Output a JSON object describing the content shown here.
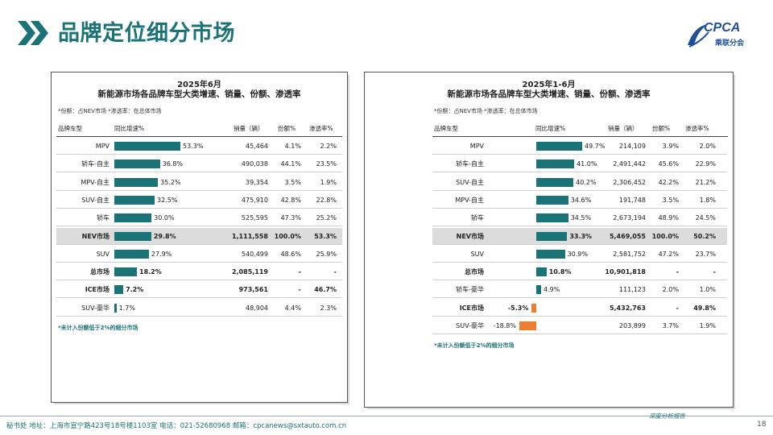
{
  "page": {
    "title": "品牌定位细分市场",
    "logo_text": "CPCA",
    "logo_sub": "乘联分会",
    "footer": "秘书处  地址：上海市宣宁路423号18号楼1103室  电话：021-52680968  邮箱：cpcanews@sxtauto.com.cn",
    "slogan": "深度分析报告",
    "page_number": "18",
    "accent_color": "#1a7376",
    "negative_color": "#ed7d31"
  },
  "left": {
    "period": "2025年6月",
    "title": "新能源市场各品牌车型大类增速、销量、份额、渗透率",
    "note": "*份额：占NEV市场  *渗透率：在总体市场",
    "footnote": "*未计入份额低于2%的细分市场",
    "headers": {
      "cat": "品牌车型",
      "growth": "同比增速%",
      "sales": "销量（辆）",
      "share": "份额%",
      "pen": "渗透率%"
    },
    "axis": {
      "min": 0,
      "max": 53.3
    },
    "rows": [
      {
        "cat": "MPV",
        "growth": 53.3,
        "growth_label": "53.3%",
        "sales": "45,464",
        "share": "4.1%",
        "pen": "2.2%"
      },
      {
        "cat": "轿车-自主",
        "growth": 36.8,
        "growth_label": "36.8%",
        "sales": "490,038",
        "share": "44.1%",
        "pen": "23.5%"
      },
      {
        "cat": "MPV-自主",
        "growth": 35.2,
        "growth_label": "35.2%",
        "sales": "39,354",
        "share": "3.5%",
        "pen": "1.9%"
      },
      {
        "cat": "SUV-自主",
        "growth": 32.5,
        "growth_label": "32.5%",
        "sales": "475,910",
        "share": "42.8%",
        "pen": "22.8%"
      },
      {
        "cat": "轿车",
        "growth": 30.0,
        "growth_label": "30.0%",
        "sales": "525,595",
        "share": "47.3%",
        "pen": "25.2%"
      },
      {
        "cat": "NEV市场",
        "growth": 29.8,
        "growth_label": "29.8%",
        "sales": "1,111,558",
        "share": "100.0%",
        "pen": "53.3%",
        "highlight": true,
        "bold": true
      },
      {
        "cat": "SUV",
        "growth": 27.9,
        "growth_label": "27.9%",
        "sales": "540,499",
        "share": "48.6%",
        "pen": "25.9%"
      },
      {
        "cat": "总市场",
        "growth": 18.2,
        "growth_label": "18.2%",
        "sales": "2,085,119",
        "share": "-",
        "pen": "-",
        "bold": true
      },
      {
        "cat": "ICE市场",
        "growth": 7.2,
        "growth_label": "7.2%",
        "sales": "973,561",
        "share": "-",
        "pen": "46.7%",
        "bold": true
      },
      {
        "cat": "SUV-豪华",
        "growth": 1.7,
        "growth_label": "1.7%",
        "sales": "48,904",
        "share": "4.4%",
        "pen": "2.3%"
      }
    ]
  },
  "right": {
    "period": "2025年1-6月",
    "title": "新能源市场各品牌车型大类增速、销量、份额、渗透率",
    "note": "*份额：占NEV市场  *渗透率：在总体市场",
    "footnote": "*未计入份额低于2%的细分市场",
    "headers": {
      "cat": "品牌车型",
      "growth": "同比增速%",
      "sales": "销量（辆）",
      "share": "份额%",
      "pen": "渗透率%"
    },
    "axis": {
      "min": -18.8,
      "max": 49.7
    },
    "rows": [
      {
        "cat": "MPV",
        "growth": 49.7,
        "growth_label": "49.7%",
        "sales": "214,109",
        "share": "3.9%",
        "pen": "2.0%"
      },
      {
        "cat": "轿车-自主",
        "growth": 41.0,
        "growth_label": "41.0%",
        "sales": "2,491,442",
        "share": "45.6%",
        "pen": "22.9%"
      },
      {
        "cat": "SUV-自主",
        "growth": 40.2,
        "growth_label": "40.2%",
        "sales": "2,306,452",
        "share": "42.2%",
        "pen": "21.2%"
      },
      {
        "cat": "MPV-自主",
        "growth": 34.6,
        "growth_label": "34.6%",
        "sales": "191,748",
        "share": "3.5%",
        "pen": "1.8%"
      },
      {
        "cat": "轿车",
        "growth": 34.5,
        "growth_label": "34.5%",
        "sales": "2,673,194",
        "share": "48.9%",
        "pen": "24.5%"
      },
      {
        "cat": "NEV市场",
        "growth": 33.3,
        "growth_label": "33.3%",
        "sales": "5,469,055",
        "share": "100.0%",
        "pen": "50.2%",
        "highlight": true,
        "bold": true
      },
      {
        "cat": "SUV",
        "growth": 30.9,
        "growth_label": "30.9%",
        "sales": "2,581,752",
        "share": "47.2%",
        "pen": "23.7%"
      },
      {
        "cat": "总市场",
        "growth": 10.8,
        "growth_label": "10.8%",
        "sales": "10,901,818",
        "share": "-",
        "pen": "-",
        "bold": true
      },
      {
        "cat": "轿车-豪华",
        "growth": 4.9,
        "growth_label": "4.9%",
        "sales": "111,123",
        "share": "2.0%",
        "pen": "1.0%"
      },
      {
        "cat": "ICE市场",
        "growth": -5.3,
        "growth_label": "-5.3%",
        "sales": "5,432,763",
        "share": "-",
        "pen": "49.8%",
        "bold": true
      },
      {
        "cat": "SUV-豪华",
        "growth": -18.8,
        "growth_label": "-18.8%",
        "sales": "203,899",
        "share": "3.7%",
        "pen": "1.9%"
      }
    ]
  }
}
